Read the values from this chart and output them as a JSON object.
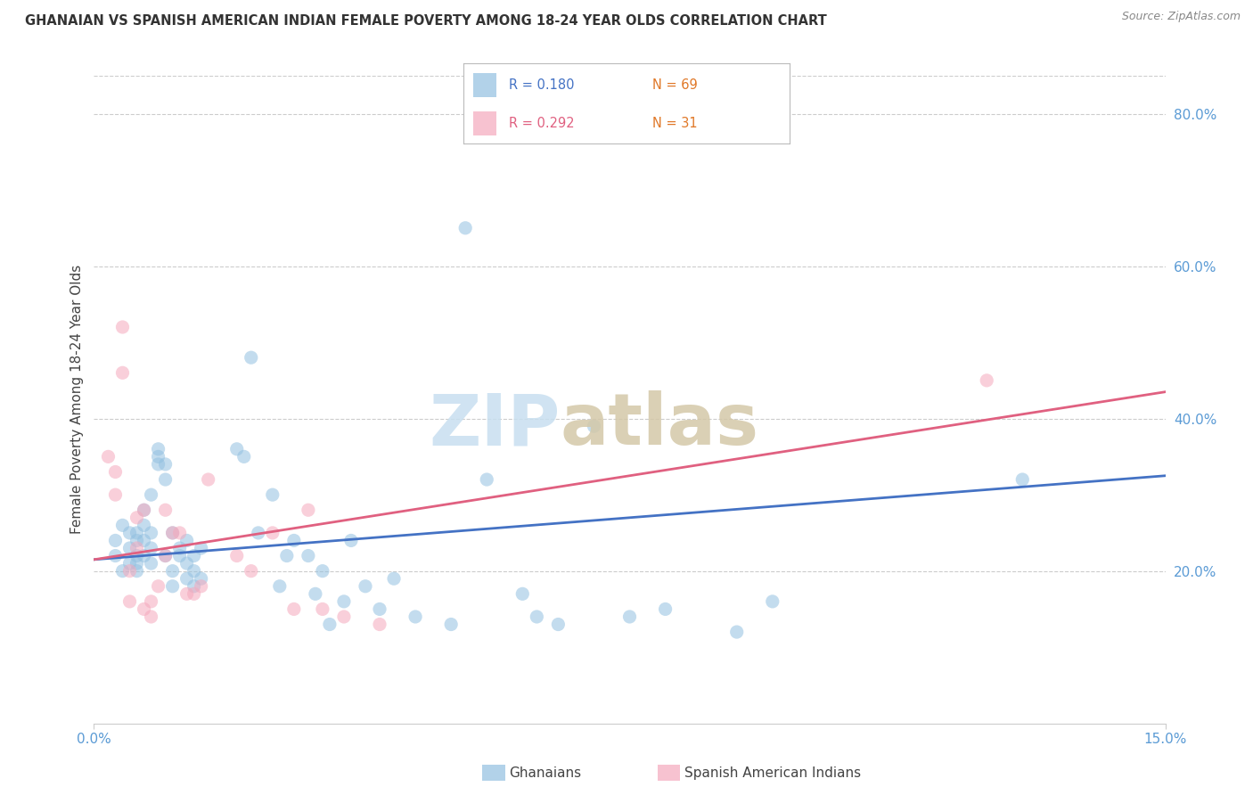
{
  "title": "GHANAIAN VS SPANISH AMERICAN INDIAN FEMALE POVERTY AMONG 18-24 YEAR OLDS CORRELATION CHART",
  "source": "Source: ZipAtlas.com",
  "ylabel": "Female Poverty Among 18-24 Year Olds",
  "ytick_labels": [
    "20.0%",
    "40.0%",
    "60.0%",
    "80.0%"
  ],
  "ytick_values": [
    0.2,
    0.4,
    0.6,
    0.8
  ],
  "xmin": 0.0,
  "xmax": 0.15,
  "ymin": 0.0,
  "ymax": 0.85,
  "blue_R": 0.18,
  "blue_N": 69,
  "pink_R": 0.292,
  "pink_N": 31,
  "blue_color": "#92c0e0",
  "pink_color": "#f5a8bc",
  "blue_line_color": "#4472c4",
  "pink_line_color": "#e06080",
  "blue_scatter_x": [
    0.003,
    0.003,
    0.004,
    0.004,
    0.005,
    0.005,
    0.005,
    0.006,
    0.006,
    0.006,
    0.006,
    0.006,
    0.007,
    0.007,
    0.007,
    0.007,
    0.008,
    0.008,
    0.008,
    0.008,
    0.009,
    0.009,
    0.009,
    0.01,
    0.01,
    0.01,
    0.011,
    0.011,
    0.011,
    0.012,
    0.012,
    0.013,
    0.013,
    0.013,
    0.014,
    0.014,
    0.014,
    0.015,
    0.015,
    0.02,
    0.021,
    0.022,
    0.023,
    0.025,
    0.026,
    0.027,
    0.028,
    0.03,
    0.031,
    0.032,
    0.033,
    0.035,
    0.036,
    0.038,
    0.04,
    0.042,
    0.045,
    0.05,
    0.052,
    0.055,
    0.06,
    0.062,
    0.065,
    0.07,
    0.075,
    0.08,
    0.09,
    0.095,
    0.13
  ],
  "blue_scatter_y": [
    0.24,
    0.22,
    0.26,
    0.2,
    0.21,
    0.23,
    0.25,
    0.24,
    0.22,
    0.2,
    0.21,
    0.25,
    0.22,
    0.24,
    0.26,
    0.28,
    0.23,
    0.21,
    0.25,
    0.3,
    0.34,
    0.36,
    0.35,
    0.32,
    0.34,
    0.22,
    0.25,
    0.2,
    0.18,
    0.22,
    0.23,
    0.19,
    0.21,
    0.24,
    0.18,
    0.22,
    0.2,
    0.23,
    0.19,
    0.36,
    0.35,
    0.48,
    0.25,
    0.3,
    0.18,
    0.22,
    0.24,
    0.22,
    0.17,
    0.2,
    0.13,
    0.16,
    0.24,
    0.18,
    0.15,
    0.19,
    0.14,
    0.13,
    0.65,
    0.32,
    0.17,
    0.14,
    0.13,
    0.39,
    0.14,
    0.15,
    0.12,
    0.16,
    0.32
  ],
  "pink_scatter_x": [
    0.002,
    0.003,
    0.003,
    0.004,
    0.004,
    0.005,
    0.005,
    0.006,
    0.006,
    0.007,
    0.007,
    0.008,
    0.008,
    0.009,
    0.01,
    0.01,
    0.011,
    0.012,
    0.013,
    0.014,
    0.015,
    0.016,
    0.02,
    0.022,
    0.025,
    0.028,
    0.03,
    0.032,
    0.035,
    0.04,
    0.125
  ],
  "pink_scatter_y": [
    0.35,
    0.3,
    0.33,
    0.52,
    0.46,
    0.2,
    0.16,
    0.23,
    0.27,
    0.28,
    0.15,
    0.16,
    0.14,
    0.18,
    0.28,
    0.22,
    0.25,
    0.25,
    0.17,
    0.17,
    0.18,
    0.32,
    0.22,
    0.2,
    0.25,
    0.15,
    0.28,
    0.15,
    0.14,
    0.13,
    0.45
  ],
  "blue_line_x": [
    0.0,
    0.15
  ],
  "blue_line_y": [
    0.215,
    0.325
  ],
  "pink_line_x": [
    0.0,
    0.15
  ],
  "pink_line_y": [
    0.215,
    0.435
  ],
  "marker_size": 120,
  "marker_alpha": 0.55,
  "axis_color": "#5b9bd5",
  "background_color": "#ffffff",
  "grid_color": "#cccccc",
  "grid_style": "--"
}
